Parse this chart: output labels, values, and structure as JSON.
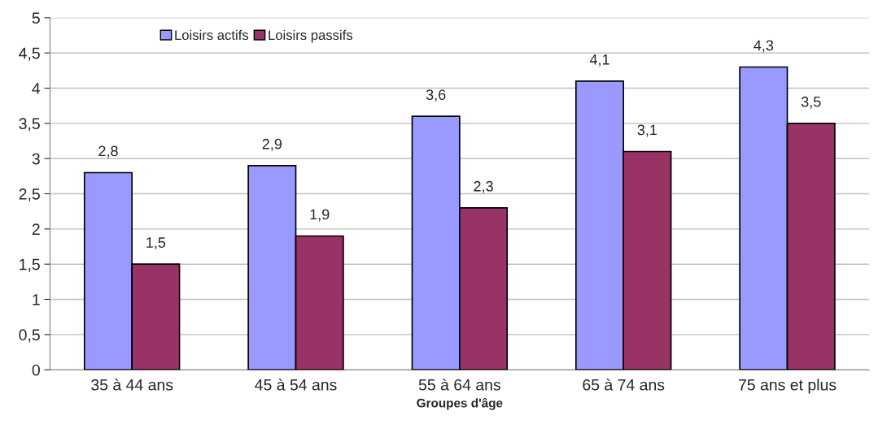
{
  "chart_data": {
    "type": "bar",
    "xlabel": "Groupes d'âge",
    "categories": [
      "35 à 44 ans",
      "45 à 54 ans",
      "55 à 64 ans",
      "65 à 74 ans",
      "75 ans et plus"
    ],
    "series": [
      {
        "name": "Loisirs actifs",
        "color": "#9999ff",
        "values": [
          2.8,
          2.9,
          3.6,
          4.1,
          4.3
        ],
        "value_labels": [
          "2,8",
          "2,9",
          "3,6",
          "4,1",
          "4,3"
        ]
      },
      {
        "name": "Loisirs passifs",
        "color": "#993366",
        "values": [
          1.5,
          1.9,
          2.3,
          3.1,
          3.5
        ],
        "value_labels": [
          "1,5",
          "1,9",
          "2,3",
          "3,1",
          "3,5"
        ]
      }
    ],
    "ylim": [
      0,
      5
    ],
    "yticks": [
      0,
      {
        "value": 0.5,
        "label": "0,5"
      },
      1,
      {
        "value": 1.5,
        "label": "1,5"
      },
      2,
      {
        "value": 2.5,
        "label": "2,5"
      },
      3,
      {
        "value": 3.5,
        "label": "3,5"
      },
      4,
      {
        "value": 4.5,
        "label": "4,5"
      },
      5
    ],
    "grid": "y",
    "legend": "top left"
  }
}
